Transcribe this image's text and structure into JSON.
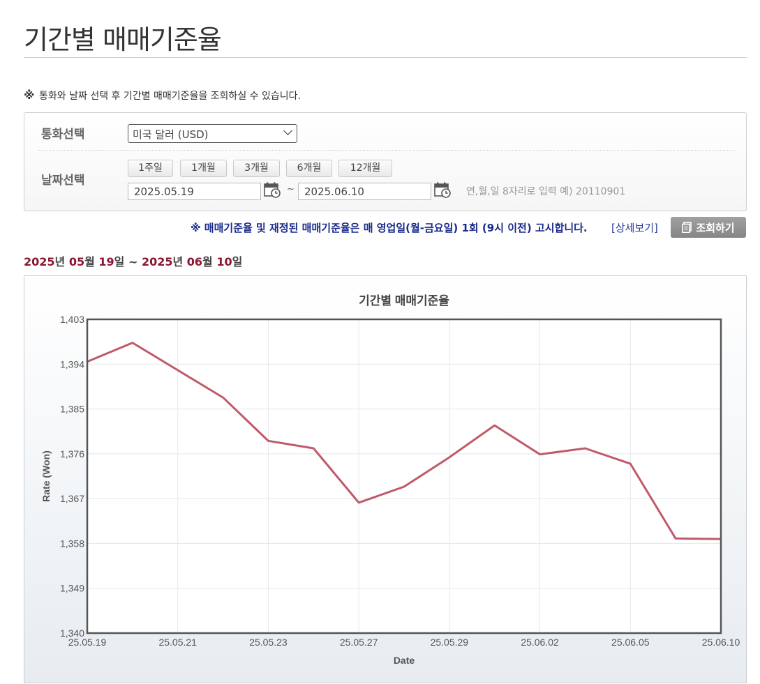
{
  "page": {
    "title": "기간별 매매기준율",
    "notice_mark": "※",
    "notice": "통화와 날짜 선택 후 기간별 매매기준율을 조회하실 수 있습니다."
  },
  "search": {
    "currency_label": "통화선택",
    "currency_value": "미국 달러 (USD)",
    "date_label": "날짜선택",
    "period_buttons": [
      "1주일",
      "1개월",
      "3개월",
      "6개월",
      "12개월"
    ],
    "start_date": "2025.05.19",
    "end_date": "2025.06.10",
    "tilde": "~",
    "date_hint": "연,월,일 8자리로 입력 예) 20110901"
  },
  "actions": {
    "rate_notice": "※ 매매기준율 및 재정된 매매기준율은 매 영업일(월-금요일) 1회 (9시 이전) 고시합니다.",
    "detail_link": "[상세보기]",
    "search_button": "조회하기"
  },
  "period_display": {
    "y1": "2025",
    "u_year1": "년 ",
    "m1": "05",
    "u_month1": "월 ",
    "d1": "19",
    "u_day1": "일 ~ ",
    "y2": "2025",
    "u_year2": "년 ",
    "m2": "06",
    "u_month2": "월 ",
    "d2": "10",
    "u_day2": "일"
  },
  "chart_data": {
    "type": "line",
    "title": "기간별 매매기준율",
    "xlabel": "Date",
    "ylabel": "Rate (Won)",
    "ylim": [
      1340,
      1403
    ],
    "yticks": [
      "1,403",
      "1,394",
      "1,385",
      "1,376",
      "1,367",
      "1,358",
      "1,349",
      "1,340"
    ],
    "ytick_values": [
      1403,
      1394,
      1385,
      1376,
      1367,
      1358,
      1349,
      1340
    ],
    "xticks": [
      "25.05.19",
      "25.05.21",
      "25.05.23",
      "25.05.27",
      "25.05.29",
      "25.06.02",
      "25.06.05",
      "25.06.10"
    ],
    "x": [
      "25.05.19",
      "25.05.20",
      "25.05.21",
      "25.05.22",
      "25.05.23",
      "25.05.26",
      "25.05.27",
      "25.05.28",
      "25.05.29",
      "25.05.30",
      "25.06.02",
      "25.06.04",
      "25.06.05",
      "25.06.09",
      "25.06.10"
    ],
    "series": [
      {
        "values": [
          1394.5,
          1398.3,
          1392.8,
          1387.3,
          1378.6,
          1377.1,
          1366.2,
          1369.4,
          1375.3,
          1381.7,
          1375.9,
          1377.1,
          1374.0,
          1359.0,
          1358.9
        ],
        "color": "#c05a6a"
      }
    ],
    "grid": true,
    "colors": {
      "line": "#c05a6a",
      "plot_border": "#555555",
      "grid": "#e4e7ea"
    }
  }
}
